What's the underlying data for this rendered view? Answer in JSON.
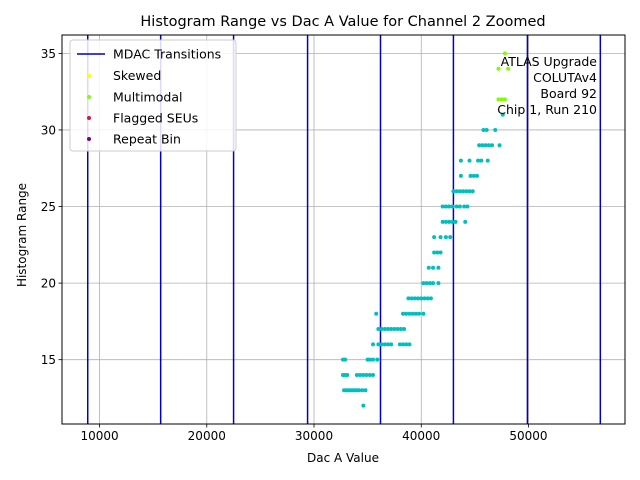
{
  "chart_data": {
    "type": "scatter",
    "title": "Histogram Range vs Dac A Value for Channel 2 Zoomed",
    "xlabel": "Dac A Value",
    "ylabel": "Histogram Range",
    "xlim": [
      6500,
      59000
    ],
    "ylim": [
      10.8,
      36.2
    ],
    "xticks": [
      10000,
      20000,
      30000,
      40000,
      50000
    ],
    "xtick_labels": [
      "10000",
      "20000",
      "30000",
      "40000",
      "50000"
    ],
    "yticks": [
      15,
      20,
      25,
      30,
      35
    ],
    "ytick_labels": [
      "15",
      "20",
      "25",
      "30",
      "35"
    ],
    "grid": true,
    "legend_position": "top-left",
    "annotation": {
      "lines": [
        "ATLAS Upgrade",
        "COLUTAv4",
        "Board 92",
        "Chip 1, Run 210"
      ],
      "position": "top-right"
    },
    "mdac_transitions": {
      "name": "MDAC Transitions",
      "color": "#0000cc",
      "x": [
        8900,
        15700,
        22500,
        29400,
        36200,
        43000,
        49900,
        56700
      ]
    },
    "legend": [
      {
        "name": "MDAC Transitions",
        "kind": "line",
        "color": "#0000cc"
      },
      {
        "name": "Skewed",
        "kind": "marker",
        "color": "#ffff00"
      },
      {
        "name": "Multimodal",
        "kind": "marker",
        "color": "#7fff00"
      },
      {
        "name": "Flagged SEUs",
        "kind": "marker",
        "color": "#dc143c"
      },
      {
        "name": "Repeat Bin",
        "kind": "marker",
        "color": "#800080"
      }
    ],
    "series": [
      {
        "name": "Data",
        "color": "#00bfbf",
        "points": [
          [
            32700,
            15
          ],
          [
            32900,
            15
          ],
          [
            35000,
            15
          ],
          [
            35200,
            15
          ],
          [
            35500,
            15
          ],
          [
            35900,
            15
          ],
          [
            32700,
            14
          ],
          [
            32900,
            14
          ],
          [
            33100,
            14
          ],
          [
            34000,
            14
          ],
          [
            34300,
            14
          ],
          [
            34600,
            14
          ],
          [
            34900,
            14
          ],
          [
            35200,
            14
          ],
          [
            35500,
            14
          ],
          [
            32800,
            13
          ],
          [
            33000,
            13
          ],
          [
            33200,
            13
          ],
          [
            33400,
            13
          ],
          [
            33600,
            13
          ],
          [
            33800,
            13
          ],
          [
            34000,
            13
          ],
          [
            34200,
            13
          ],
          [
            34500,
            13
          ],
          [
            34800,
            13
          ],
          [
            34600,
            12
          ],
          [
            35500,
            16
          ],
          [
            36000,
            16
          ],
          [
            36300,
            16
          ],
          [
            36600,
            16
          ],
          [
            36900,
            16
          ],
          [
            37200,
            16
          ],
          [
            38000,
            16
          ],
          [
            38300,
            16
          ],
          [
            38600,
            16
          ],
          [
            38900,
            16
          ],
          [
            36000,
            17
          ],
          [
            36300,
            17
          ],
          [
            36600,
            17
          ],
          [
            36900,
            17
          ],
          [
            37200,
            17
          ],
          [
            37500,
            17
          ],
          [
            37800,
            17
          ],
          [
            38100,
            17
          ],
          [
            38400,
            17
          ],
          [
            35800,
            18
          ],
          [
            38300,
            18
          ],
          [
            38600,
            18
          ],
          [
            38900,
            18
          ],
          [
            39200,
            18
          ],
          [
            39500,
            18
          ],
          [
            39800,
            18
          ],
          [
            40200,
            18
          ],
          [
            38800,
            19
          ],
          [
            39100,
            19
          ],
          [
            39400,
            19
          ],
          [
            39700,
            19
          ],
          [
            40000,
            19
          ],
          [
            40300,
            19
          ],
          [
            40600,
            19
          ],
          [
            40900,
            19
          ],
          [
            40200,
            20
          ],
          [
            40500,
            20
          ],
          [
            40800,
            20
          ],
          [
            41100,
            20
          ],
          [
            41600,
            20
          ],
          [
            40700,
            21
          ],
          [
            41100,
            21
          ],
          [
            41600,
            21
          ],
          [
            41200,
            22
          ],
          [
            41500,
            22
          ],
          [
            41800,
            22
          ],
          [
            41200,
            23
          ],
          [
            41800,
            23
          ],
          [
            42300,
            23
          ],
          [
            42700,
            23
          ],
          [
            42000,
            24
          ],
          [
            42300,
            24
          ],
          [
            42600,
            24
          ],
          [
            42900,
            24
          ],
          [
            43200,
            24
          ],
          [
            44100,
            24
          ],
          [
            42000,
            25
          ],
          [
            42300,
            25
          ],
          [
            42600,
            25
          ],
          [
            42900,
            25
          ],
          [
            43300,
            25
          ],
          [
            43600,
            25
          ],
          [
            44000,
            25
          ],
          [
            44300,
            25
          ],
          [
            43000,
            26
          ],
          [
            43300,
            26
          ],
          [
            43600,
            26
          ],
          [
            43900,
            26
          ],
          [
            44200,
            26
          ],
          [
            44500,
            26
          ],
          [
            44800,
            26
          ],
          [
            43700,
            27
          ],
          [
            44600,
            27
          ],
          [
            44900,
            27
          ],
          [
            45200,
            27
          ],
          [
            43700,
            28
          ],
          [
            44500,
            28
          ],
          [
            45300,
            28
          ],
          [
            45600,
            28
          ],
          [
            46200,
            28
          ],
          [
            45400,
            29
          ],
          [
            45700,
            29
          ],
          [
            46000,
            29
          ],
          [
            46300,
            29
          ],
          [
            46600,
            29
          ],
          [
            47300,
            29
          ],
          [
            45800,
            30
          ],
          [
            46100,
            30
          ],
          [
            46900,
            30
          ],
          [
            47600,
            31
          ]
        ]
      },
      {
        "name": "Multimodal",
        "color": "#7fff00",
        "points": [
          [
            47200,
            32
          ],
          [
            47500,
            32
          ],
          [
            47800,
            32
          ],
          [
            47200,
            34
          ],
          [
            48100,
            34
          ],
          [
            47800,
            35
          ]
        ]
      }
    ]
  }
}
